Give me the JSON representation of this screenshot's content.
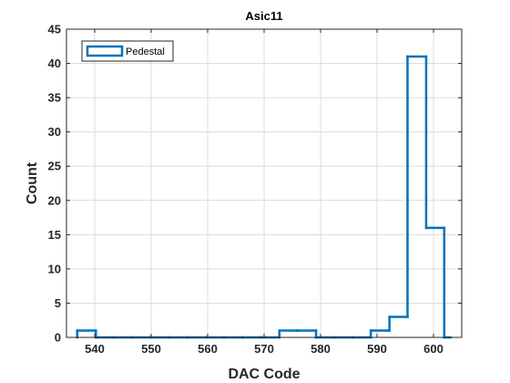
{
  "chart_data": {
    "type": "histogram",
    "title": "Asic11",
    "xlabel": "DAC Code",
    "ylabel": "Count",
    "xlim": [
      535,
      605
    ],
    "ylim": [
      0,
      45
    ],
    "xticks": [
      540,
      550,
      560,
      570,
      580,
      590,
      600
    ],
    "yticks": [
      0,
      5,
      10,
      15,
      20,
      25,
      30,
      35,
      40,
      45
    ],
    "grid": true,
    "legend": {
      "entries": [
        "Pedestal"
      ],
      "placement": "top-left"
    },
    "series": [
      {
        "name": "Pedestal",
        "color": "#0072BD",
        "bin_edges": [
          536.9,
          540.2,
          543.4,
          546.7,
          549.9,
          553.2,
          556.4,
          559.7,
          562.9,
          566.2,
          569.4,
          572.7,
          575.9,
          579.2,
          582.4,
          585.7,
          588.9,
          592.2,
          595.4,
          598.7,
          601.9,
          603.0
        ],
        "counts": [
          1,
          0,
          0,
          0,
          0,
          0,
          0,
          0,
          0,
          0,
          0,
          1,
          1,
          0,
          0,
          0,
          1,
          3,
          41,
          16,
          0
        ]
      }
    ]
  }
}
